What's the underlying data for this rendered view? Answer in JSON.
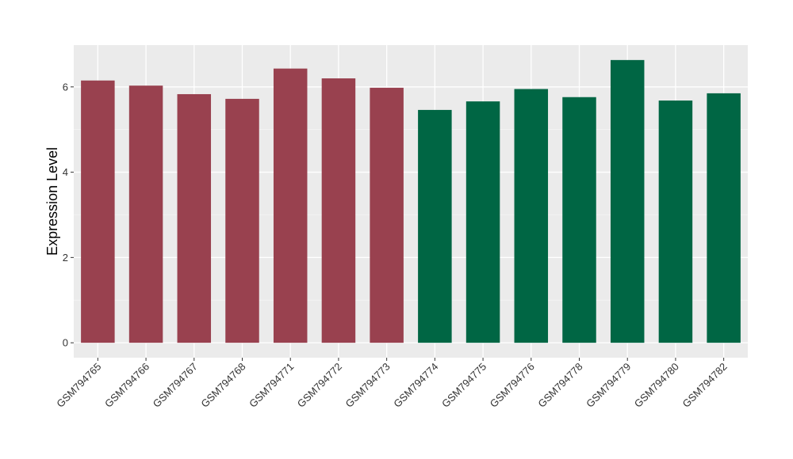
{
  "chart_data": {
    "type": "bar",
    "title": "",
    "xlabel": "",
    "ylabel": "Expression Level",
    "ylim": [
      -0.35,
      6.98
    ],
    "yticks": [
      0,
      2,
      4,
      6
    ],
    "grid": true,
    "legend": "none",
    "categories": [
      "GSM794765",
      "GSM794766",
      "GSM794767",
      "GSM794768",
      "GSM794771",
      "GSM794772",
      "GSM794773",
      "GSM794774",
      "GSM794775",
      "GSM794776",
      "GSM794778",
      "GSM794779",
      "GSM794780",
      "GSM794782"
    ],
    "values": [
      6.15,
      6.03,
      5.83,
      5.72,
      6.43,
      6.2,
      5.98,
      5.46,
      5.66,
      5.95,
      5.76,
      6.63,
      5.68,
      5.85
    ],
    "groups": [
      0,
      0,
      0,
      0,
      0,
      0,
      0,
      1,
      1,
      1,
      1,
      1,
      1,
      1
    ],
    "group_colors": [
      "#99414f",
      "#006644"
    ]
  },
  "colors": {
    "panel_background": "#ebebeb",
    "grid_major": "#ffffff",
    "grid_minor": "#f5f5f5",
    "tick_color": "#333333"
  }
}
